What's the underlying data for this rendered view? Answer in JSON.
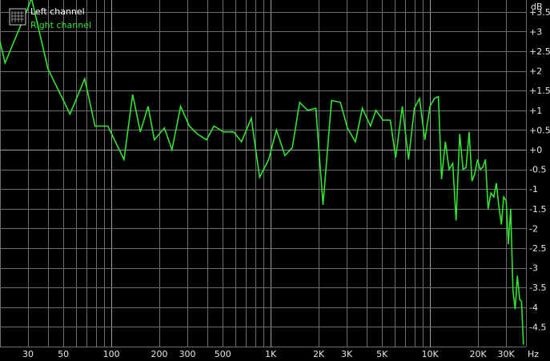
{
  "chart_data": {
    "type": "line",
    "x_scale": "log",
    "xlim": [
      20,
      40000
    ],
    "ylim": [
      -5,
      3.8
    ],
    "grid": true,
    "legend_position": "top-left",
    "xlabel": "Hz",
    "ylabel": "dB",
    "x_ticks": [
      {
        "value": 30,
        "label": "30"
      },
      {
        "value": 50,
        "label": "50"
      },
      {
        "value": 100,
        "label": "100"
      },
      {
        "value": 200,
        "label": "200"
      },
      {
        "value": 300,
        "label": "300"
      },
      {
        "value": 500,
        "label": "500"
      },
      {
        "value": 1000,
        "label": "1K"
      },
      {
        "value": 2000,
        "label": "2K"
      },
      {
        "value": 3000,
        "label": "3K"
      },
      {
        "value": 5000,
        "label": "5K"
      },
      {
        "value": 10000,
        "label": "10K"
      },
      {
        "value": 20000,
        "label": "20K"
      },
      {
        "value": 30000,
        "label": "30K"
      }
    ],
    "y_ticks": [
      {
        "value": 3.5,
        "label": "+3.5"
      },
      {
        "value": 3,
        "label": "+3"
      },
      {
        "value": 2.5,
        "label": "+2.5"
      },
      {
        "value": 2,
        "label": "+2"
      },
      {
        "value": 1.5,
        "label": "+1.5"
      },
      {
        "value": 1,
        "label": "+1"
      },
      {
        "value": 0.5,
        "label": "+0.5"
      },
      {
        "value": 0,
        "label": "+0"
      },
      {
        "value": -0.5,
        "label": "-0.5"
      },
      {
        "value": -1,
        "label": "-1"
      },
      {
        "value": -1.5,
        "label": "-1.5"
      },
      {
        "value": -2,
        "label": "-2"
      },
      {
        "value": -2.5,
        "label": "-2.5"
      },
      {
        "value": -3,
        "label": "-3"
      },
      {
        "value": -3.5,
        "label": "-3.5"
      },
      {
        "value": -4,
        "label": "-4"
      },
      {
        "value": -4.5,
        "label": "-4.5"
      }
    ],
    "series": [
      {
        "name": "Left channel",
        "color": "#ffffff",
        "points": []
      },
      {
        "name": "Right channel",
        "color": "#33e233",
        "points": [
          [
            20,
            2.75
          ],
          [
            21.5,
            2.2
          ],
          [
            30,
            3.6
          ],
          [
            31.5,
            3.85
          ],
          [
            40,
            2.05
          ],
          [
            50,
            1.25
          ],
          [
            55,
            0.9
          ],
          [
            68,
            1.8
          ],
          [
            79,
            0.6
          ],
          [
            95,
            0.6
          ],
          [
            106,
            0.2
          ],
          [
            120,
            -0.25
          ],
          [
            136,
            1.4
          ],
          [
            152,
            0.45
          ],
          [
            170,
            1.1
          ],
          [
            186,
            0.25
          ],
          [
            215,
            0.55
          ],
          [
            240,
            0.0
          ],
          [
            272,
            1.1
          ],
          [
            309,
            0.6
          ],
          [
            346,
            0.4
          ],
          [
            395,
            0.25
          ],
          [
            440,
            0.6
          ],
          [
            507,
            0.45
          ],
          [
            586,
            0.45
          ],
          [
            656,
            0.2
          ],
          [
            755,
            0.8
          ],
          [
            852,
            -0.7
          ],
          [
            971,
            -0.25
          ],
          [
            1086,
            0.5
          ],
          [
            1228,
            -0.15
          ],
          [
            1366,
            0.05
          ],
          [
            1519,
            1.2
          ],
          [
            1704,
            1.0
          ],
          [
            1920,
            1.05
          ],
          [
            2131,
            -1.4
          ],
          [
            2409,
            1.25
          ],
          [
            2737,
            1.2
          ],
          [
            3031,
            0.55
          ],
          [
            3399,
            0.2
          ],
          [
            3760,
            1.05
          ],
          [
            4228,
            0.6
          ],
          [
            4570,
            1.0
          ],
          [
            5074,
            0.75
          ],
          [
            5627,
            0.75
          ],
          [
            6081,
            -0.2
          ],
          [
            6707,
            1.1
          ],
          [
            7328,
            -0.25
          ],
          [
            7970,
            1.05
          ],
          [
            8588,
            1.3
          ],
          [
            9276,
            0.25
          ],
          [
            9992,
            1.1
          ],
          [
            10643,
            1.3
          ],
          [
            11287,
            1.35
          ],
          [
            11797,
            -0.75
          ],
          [
            12472,
            0.2
          ],
          [
            13175,
            -0.5
          ],
          [
            13872,
            -0.35
          ],
          [
            14572,
            -1.8
          ],
          [
            15351,
            0.4
          ],
          [
            16111,
            -0.5
          ],
          [
            16840,
            -0.45
          ],
          [
            17590,
            0.45
          ],
          [
            18336,
            -0.8
          ],
          [
            19098,
            -0.6
          ],
          [
            19868,
            -0.25
          ],
          [
            20645,
            -0.5
          ],
          [
            21425,
            -0.45
          ],
          [
            22270,
            -0.25
          ],
          [
            23139,
            -1.5
          ],
          [
            24101,
            -1.1
          ],
          [
            25107,
            -1.2
          ],
          [
            26084,
            -0.85
          ],
          [
            26952,
            -1.4
          ],
          [
            28040,
            -1.9
          ],
          [
            28953,
            -1.2
          ],
          [
            30058,
            -1.3
          ],
          [
            31023,
            -2.4
          ],
          [
            32078,
            -1.5
          ],
          [
            33175,
            -3.6
          ],
          [
            34232,
            -4.05
          ],
          [
            35315,
            -3.2
          ],
          [
            36486,
            -3.8
          ],
          [
            37512,
            -3.85
          ],
          [
            38540,
            -4.95
          ]
        ]
      }
    ]
  }
}
